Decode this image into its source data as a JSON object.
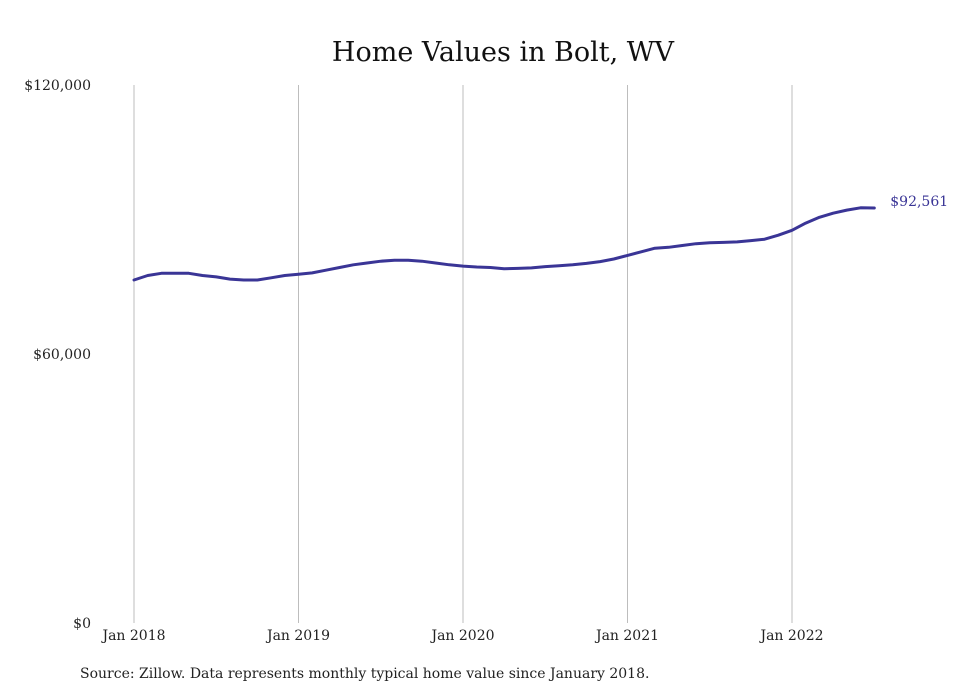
{
  "chart_data": {
    "type": "line",
    "title": "Home Values in Bolt, WV",
    "xlabel": "",
    "ylabel": "",
    "ylim": [
      0,
      120000
    ],
    "yticks": [
      {
        "value": 0,
        "label": "$0"
      },
      {
        "value": 60000,
        "label": "$60,000"
      },
      {
        "value": 120000,
        "label": "$120,000"
      }
    ],
    "xticks": [
      {
        "value": "2018-01",
        "label": "Jan 2018"
      },
      {
        "value": "2019-01",
        "label": "Jan 2019"
      },
      {
        "value": "2020-01",
        "label": "Jan 2020"
      },
      {
        "value": "2021-01",
        "label": "Jan 2021"
      },
      {
        "value": "2022-01",
        "label": "Jan 2022"
      }
    ],
    "grid": {
      "vertical": true,
      "horizontal": false
    },
    "series": [
      {
        "color": "#3a3596",
        "end_label": "$92,561",
        "x": [
          "2018-01",
          "2018-02",
          "2018-03",
          "2018-04",
          "2018-05",
          "2018-06",
          "2018-07",
          "2018-08",
          "2018-09",
          "2018-10",
          "2018-11",
          "2018-12",
          "2019-01",
          "2019-02",
          "2019-03",
          "2019-04",
          "2019-05",
          "2019-06",
          "2019-07",
          "2019-08",
          "2019-09",
          "2019-10",
          "2019-11",
          "2019-12",
          "2020-01",
          "2020-02",
          "2020-03",
          "2020-04",
          "2020-05",
          "2020-06",
          "2020-07",
          "2020-08",
          "2020-09",
          "2020-10",
          "2020-11",
          "2020-12",
          "2021-01",
          "2021-02",
          "2021-03",
          "2021-04",
          "2021-05",
          "2021-06",
          "2021-07",
          "2021-08",
          "2021-09",
          "2021-10",
          "2021-11",
          "2021-12",
          "2022-01",
          "2022-02",
          "2022-03",
          "2022-04",
          "2022-05",
          "2022-06",
          "2022-07"
        ],
        "values": [
          76500,
          77500,
          78000,
          78000,
          78000,
          77500,
          77200,
          76700,
          76500,
          76500,
          77000,
          77500,
          77800,
          78100,
          78700,
          79300,
          79900,
          80300,
          80700,
          80900,
          80900,
          80700,
          80300,
          79900,
          79600,
          79400,
          79300,
          79000,
          79100,
          79200,
          79500,
          79700,
          79900,
          80200,
          80600,
          81200,
          82000,
          82800,
          83600,
          83800,
          84200,
          84600,
          84800,
          84900,
          85000,
          85300,
          85600,
          86500,
          87600,
          89200,
          90500,
          91400,
          92100,
          92600,
          92561
        ]
      }
    ]
  },
  "source": "Source: Zillow. Data represents monthly typical home value since January 2018."
}
